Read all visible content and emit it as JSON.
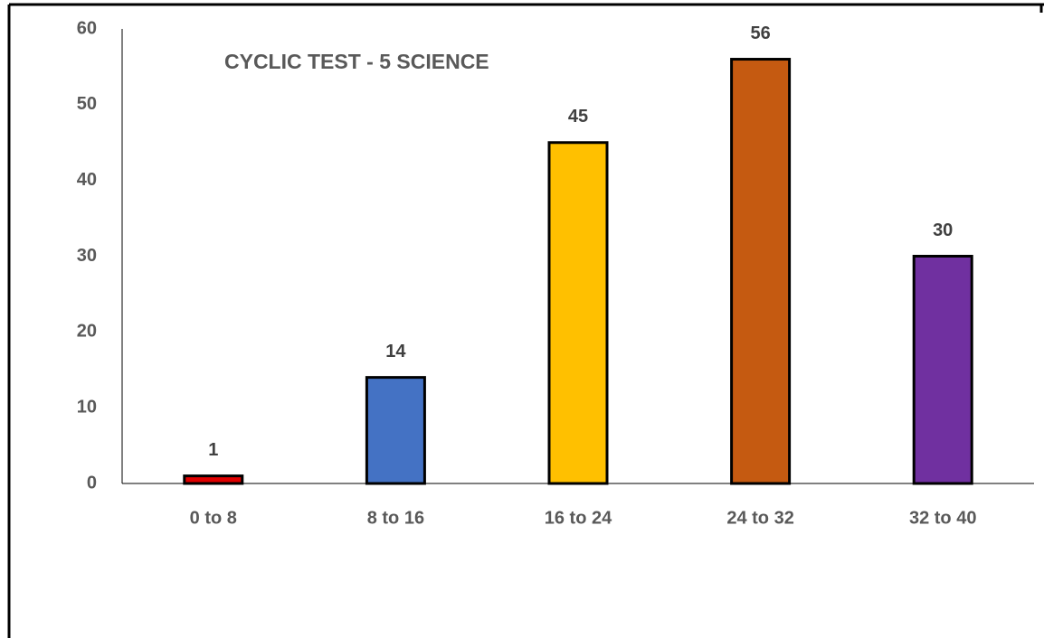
{
  "chart_data": {
    "type": "bar",
    "title": "CYCLIC TEST - 5 SCIENCE",
    "categories": [
      "0 to 8",
      "8 to 16",
      "16 to 24",
      "24 to 32",
      "32 to 40"
    ],
    "values": [
      1,
      14,
      45,
      56,
      30
    ],
    "colors": [
      "#e00000",
      "#4472c4",
      "#ffc000",
      "#c55a11",
      "#7030a0"
    ],
    "ylim": [
      0,
      60
    ],
    "yticks": [
      0,
      10,
      20,
      30,
      40,
      50,
      60
    ],
    "grid": false
  }
}
